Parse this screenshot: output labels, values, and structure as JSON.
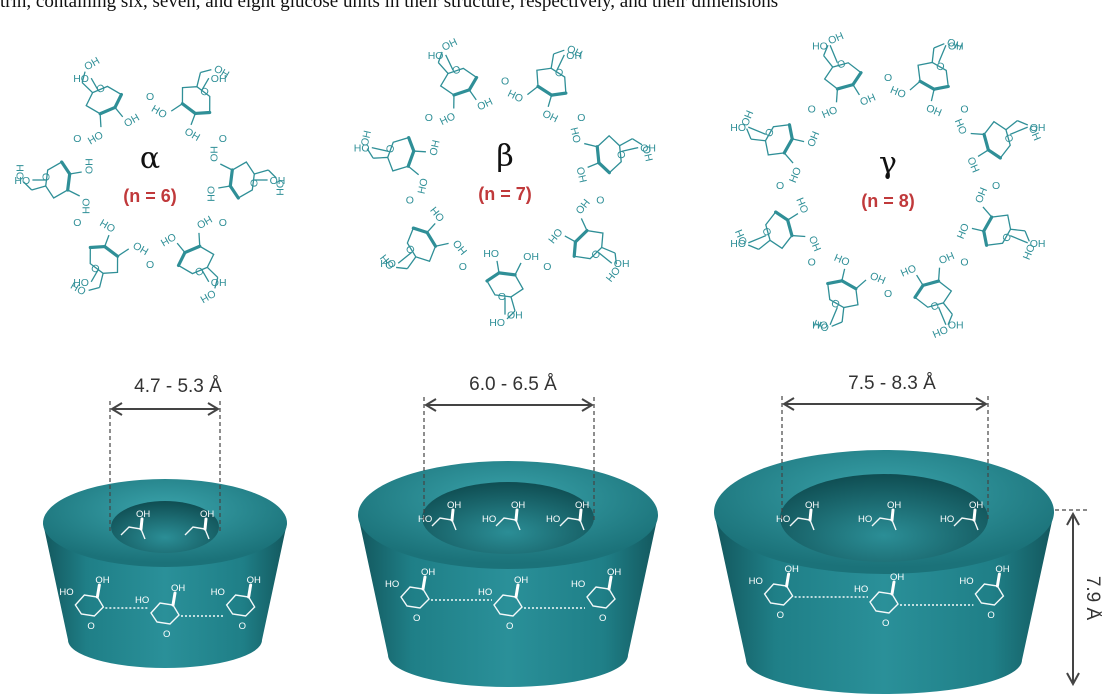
{
  "caption": "trin, containing six, seven, and eight glucose units in their structure, respectively, and their dimensions",
  "rings": [
    {
      "symbol": "α",
      "n_label": "(n = 6)",
      "n": 6,
      "diameter": "4.7 - 5.3 Å"
    },
    {
      "symbol": "β",
      "n_label": "(n = 7)",
      "n": 7,
      "diameter": "6.0 - 6.5 Å"
    },
    {
      "symbol": "γ",
      "n_label": "(n = 8)",
      "n": 8,
      "diameter": "7.5 - 8.3 Å"
    }
  ],
  "height_label": "7.9 Å",
  "atoms": {
    "ho": "HO",
    "oh": "OH",
    "o": "O"
  },
  "colors": {
    "molecule": "#2f8f97",
    "torus": "#1f7f87",
    "torus_dark": "#13575d",
    "label_red": "#c0393b"
  }
}
